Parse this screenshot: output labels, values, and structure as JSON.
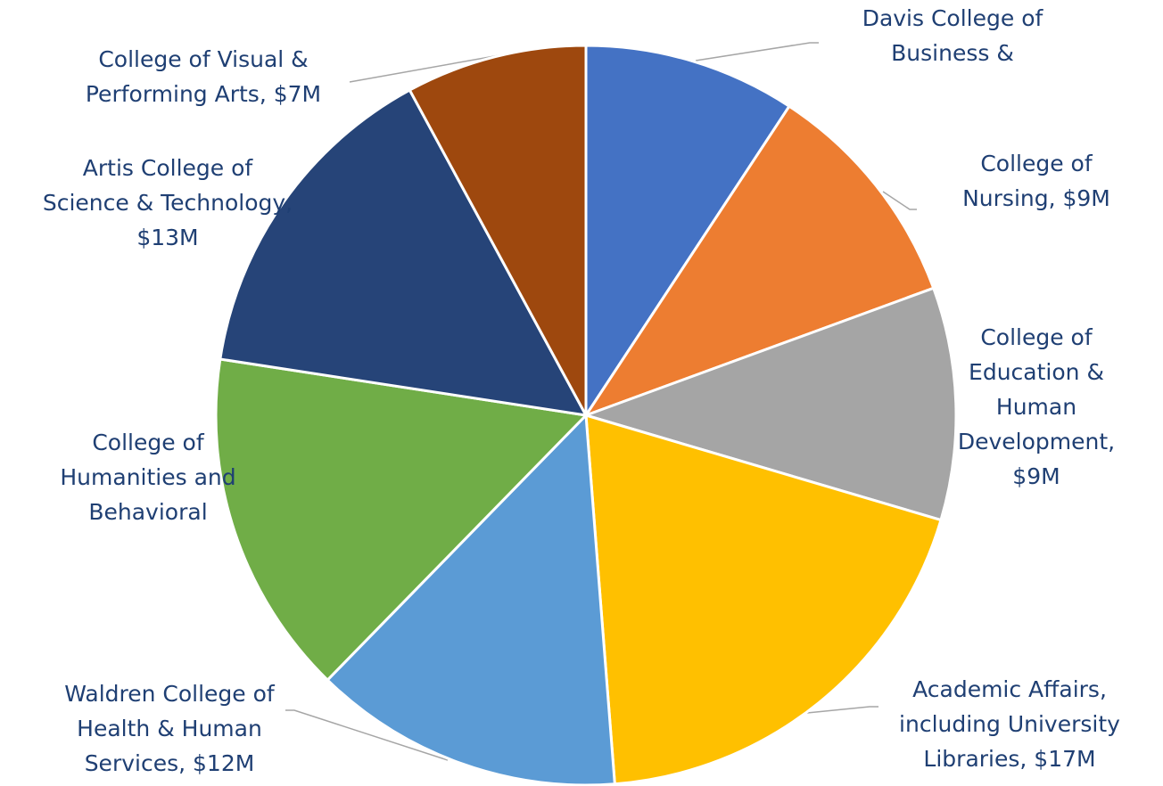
{
  "chart_data": {
    "type": "pie",
    "values": [
      8.2,
      9,
      9,
      17,
      12,
      13.4,
      13,
      7
    ],
    "value_labels": [
      [
        "Davis College of",
        "Business &"
      ],
      [
        "College of",
        "Nursing, $9M"
      ],
      [
        "College of",
        "Education &",
        "Human",
        "Development,",
        "$9M"
      ],
      [
        "Academic Affairs,",
        "including University",
        "Libraries,  $17M"
      ],
      [
        "Waldren College of",
        "Health & Human",
        "Services, $12M"
      ],
      [
        "College of",
        "Humanities and",
        "Behavioral"
      ],
      [
        "Artis College of",
        "Science & Technology,",
        "$13M"
      ],
      [
        "College of Visual &",
        "Performing Arts, $7M"
      ]
    ],
    "colors": [
      "#4472c4",
      "#ed7d31",
      "#a5a5a5",
      "#ffc000",
      "#5b9bd5",
      "#70ad47",
      "#264478",
      "#9e480e"
    ]
  }
}
